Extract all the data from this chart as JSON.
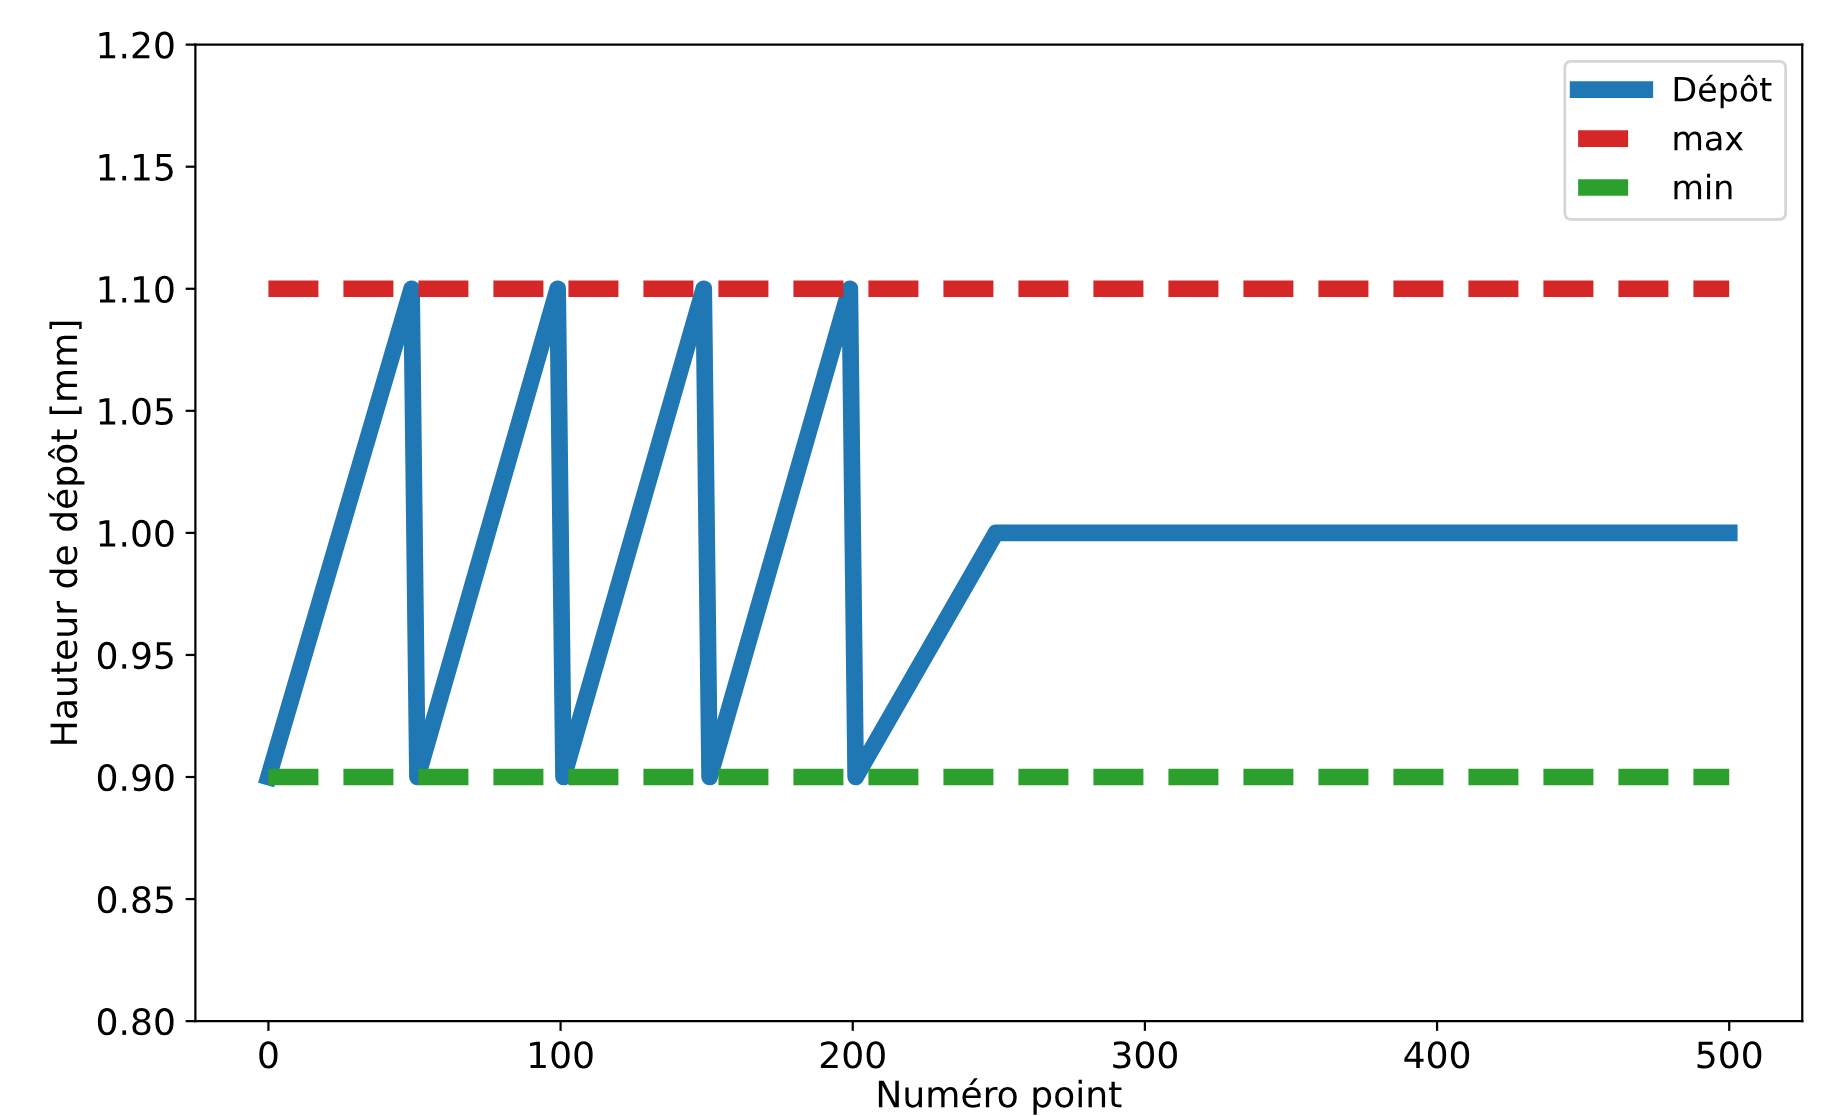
{
  "chart_data": {
    "type": "line",
    "xlabel": "Numéro point",
    "ylabel": "Hauteur de dépôt [mm]",
    "xlim": [
      -25,
      525
    ],
    "xticks": [
      0,
      100,
      200,
      300,
      400,
      500
    ],
    "ylim": [
      0.8,
      1.2
    ],
    "yticks": [
      {
        "value": 0.8,
        "label": "0.80"
      },
      0.85,
      {
        "value": 0.9,
        "label": "0.90"
      },
      0.95,
      {
        "value": 1.0,
        "label": "1.00"
      },
      1.05,
      {
        "value": 1.1,
        "label": "1.10"
      },
      1.15,
      {
        "value": 1.2,
        "label": "1.20"
      }
    ],
    "grid": false,
    "legend": "top right",
    "series": [
      {
        "name": "Dépôt",
        "color": "#1f77b4",
        "line_style": "solid",
        "x": [
          0,
          49,
          51,
          99,
          101,
          149,
          151,
          199,
          201,
          249,
          500
        ],
        "values": [
          0.9,
          1.1,
          0.9,
          1.1,
          0.9,
          1.1,
          0.9,
          1.1,
          0.9,
          1.0,
          1.0
        ]
      },
      {
        "name": "max",
        "color": "#d62728",
        "line_style": "dashed",
        "x": [
          0,
          500
        ],
        "values": [
          1.1,
          1.1
        ]
      },
      {
        "name": "min",
        "color": "#2ca02c",
        "line_style": "dashed",
        "x": [
          0,
          500
        ],
        "values": [
          0.9,
          0.9
        ]
      }
    ]
  }
}
